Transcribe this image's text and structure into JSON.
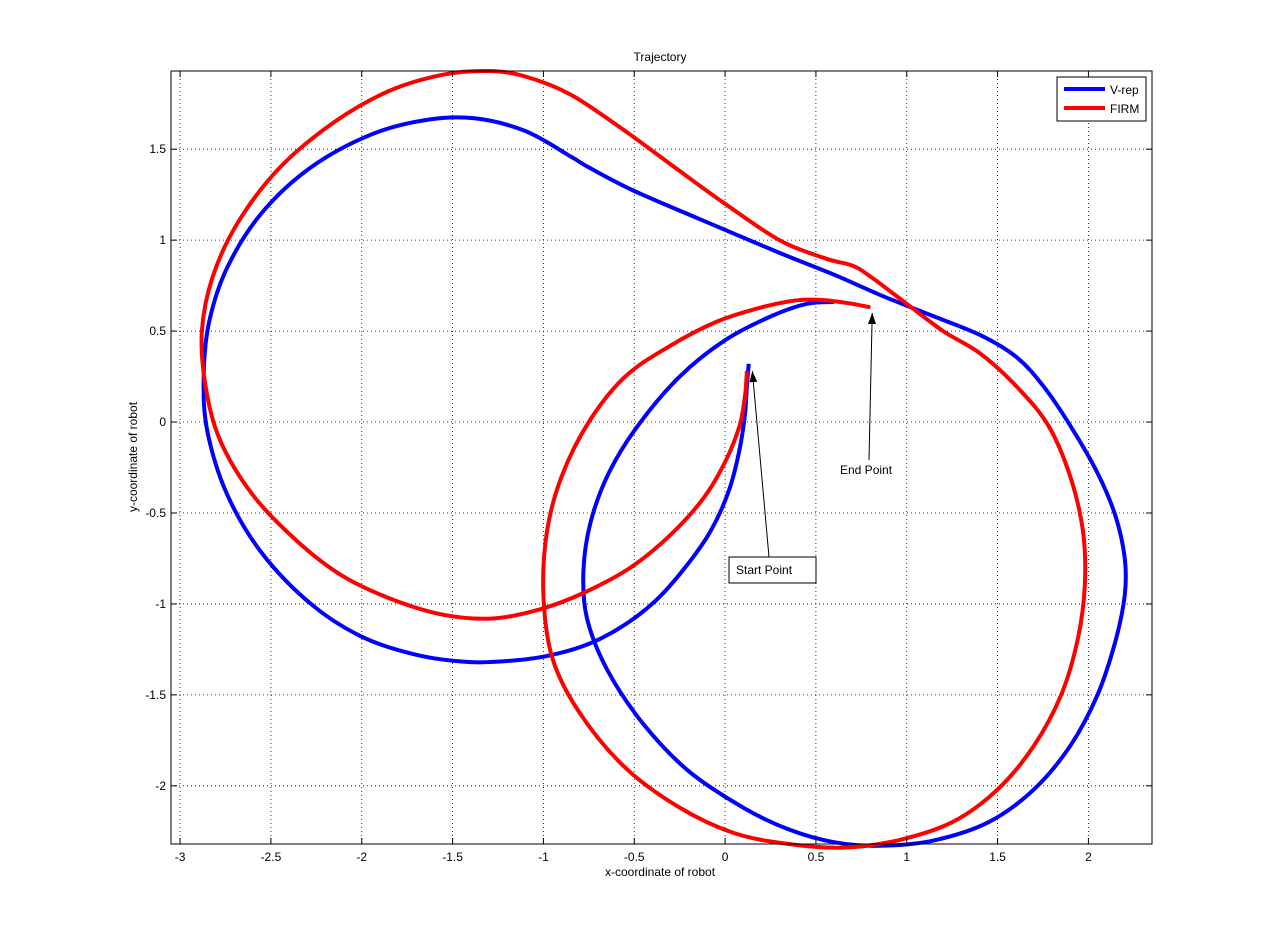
{
  "chart_data": {
    "type": "line",
    "title": "Trajectory",
    "xlabel": "x-coordinate of robot",
    "ylabel": "y-coordinate of robot",
    "xlim": [
      -3.05,
      2.35
    ],
    "ylim": [
      -2.32,
      1.93
    ],
    "grid": true,
    "x_ticks": [
      -3,
      -2.5,
      -2,
      -1.5,
      -1,
      -0.5,
      0,
      0.5,
      1,
      1.5,
      2
    ],
    "x_tick_labels": [
      "-3",
      "-2.5",
      "-2",
      "-1.5",
      "-1",
      "-0.5",
      "0",
      "0.5",
      "1",
      "1.5",
      "2"
    ],
    "y_ticks": [
      1.5,
      1,
      0.5,
      0,
      -0.5,
      -1,
      -1.5,
      -2
    ],
    "y_tick_labels": [
      "1.5",
      "1",
      "0.5",
      "0",
      "-0.5",
      "-1",
      "-1.5",
      "-2"
    ],
    "legend_position": "top-right",
    "series": [
      {
        "name": "V-rep",
        "color": "#0000ff",
        "x": [
          0.13,
          0.12,
          0.11,
          0.08,
          0.02,
          -0.08,
          -0.22,
          -0.38,
          -0.56,
          -0.75,
          -0.95,
          -1.15,
          -1.4,
          -1.7,
          -2.0,
          -2.28,
          -2.55,
          -2.74,
          -2.85,
          -2.87,
          -2.84,
          -2.74,
          -2.55,
          -2.28,
          -1.95,
          -1.65,
          -1.38,
          -1.1,
          -0.85,
          -0.75,
          -0.5,
          -0.15,
          0.3,
          0.6,
          0.85,
          1.1,
          1.4,
          1.6,
          1.75,
          1.9,
          2.05,
          2.15,
          2.2,
          2.2,
          2.15,
          2.05,
          1.9,
          1.7,
          1.45,
          1.15,
          0.85,
          0.6,
          0.35,
          0.1,
          -0.2,
          -0.45,
          -0.65,
          -0.76,
          -0.78,
          -0.74,
          -0.64,
          -0.48,
          -0.25,
          0.0,
          0.25,
          0.45,
          0.6
        ],
        "y": [
          0.32,
          0.2,
          0.05,
          -0.15,
          -0.38,
          -0.6,
          -0.8,
          -0.98,
          -1.12,
          -1.22,
          -1.28,
          -1.31,
          -1.32,
          -1.28,
          -1.18,
          -1.0,
          -0.72,
          -0.4,
          -0.05,
          0.25,
          0.55,
          0.85,
          1.15,
          1.4,
          1.58,
          1.66,
          1.67,
          1.6,
          1.46,
          1.4,
          1.27,
          1.12,
          0.93,
          0.81,
          0.7,
          0.6,
          0.48,
          0.36,
          0.2,
          -0.02,
          -0.28,
          -0.52,
          -0.75,
          -0.95,
          -1.2,
          -1.5,
          -1.78,
          -2.02,
          -2.2,
          -2.3,
          -2.33,
          -2.31,
          -2.24,
          -2.12,
          -1.92,
          -1.66,
          -1.36,
          -1.08,
          -0.82,
          -0.55,
          -0.28,
          -0.02,
          0.25,
          0.45,
          0.58,
          0.65,
          0.66
        ]
      },
      {
        "name": "FIRM",
        "color": "#ff0000",
        "x": [
          0.12,
          0.11,
          0.08,
          0.0,
          -0.12,
          -0.3,
          -0.52,
          -0.78,
          -1.02,
          -1.28,
          -1.55,
          -1.82,
          -2.1,
          -2.35,
          -2.6,
          -2.78,
          -2.86,
          -2.88,
          -2.82,
          -2.68,
          -2.45,
          -2.15,
          -1.85,
          -1.55,
          -1.3,
          -1.1,
          -0.85,
          -0.55,
          -0.25,
          0.0,
          0.3,
          0.55,
          0.7,
          0.8,
          1.0,
          1.2,
          1.4,
          1.6,
          1.78,
          1.9,
          1.97,
          1.98,
          1.94,
          1.85,
          1.7,
          1.5,
          1.25,
          0.95,
          0.65,
          0.35,
          0.05,
          -0.25,
          -0.55,
          -0.8,
          -0.95,
          -1.0,
          -0.98,
          -0.9,
          -0.75,
          -0.55,
          -0.3,
          -0.05,
          0.2,
          0.4,
          0.55,
          0.7,
          0.8
        ],
        "y": [
          0.28,
          0.15,
          -0.02,
          -0.22,
          -0.42,
          -0.62,
          -0.8,
          -0.94,
          -1.03,
          -1.08,
          -1.06,
          -0.98,
          -0.85,
          -0.66,
          -0.4,
          -0.1,
          0.2,
          0.5,
          0.8,
          1.1,
          1.4,
          1.65,
          1.82,
          1.91,
          1.93,
          1.9,
          1.8,
          1.6,
          1.38,
          1.2,
          1.0,
          0.9,
          0.86,
          0.8,
          0.65,
          0.5,
          0.38,
          0.2,
          -0.02,
          -0.3,
          -0.6,
          -0.9,
          -1.2,
          -1.5,
          -1.78,
          -2.02,
          -2.2,
          -2.3,
          -2.34,
          -2.32,
          -2.26,
          -2.12,
          -1.9,
          -1.6,
          -1.3,
          -0.95,
          -0.6,
          -0.3,
          0.0,
          0.25,
          0.42,
          0.55,
          0.63,
          0.67,
          0.67,
          0.65,
          0.63
        ]
      }
    ],
    "annotations": [
      {
        "text": "Start Point",
        "points_to": [
          0.15,
          0.28
        ],
        "boxed": true
      },
      {
        "text": "End Point",
        "points_to": [
          0.81,
          0.6
        ],
        "boxed": false
      }
    ]
  }
}
